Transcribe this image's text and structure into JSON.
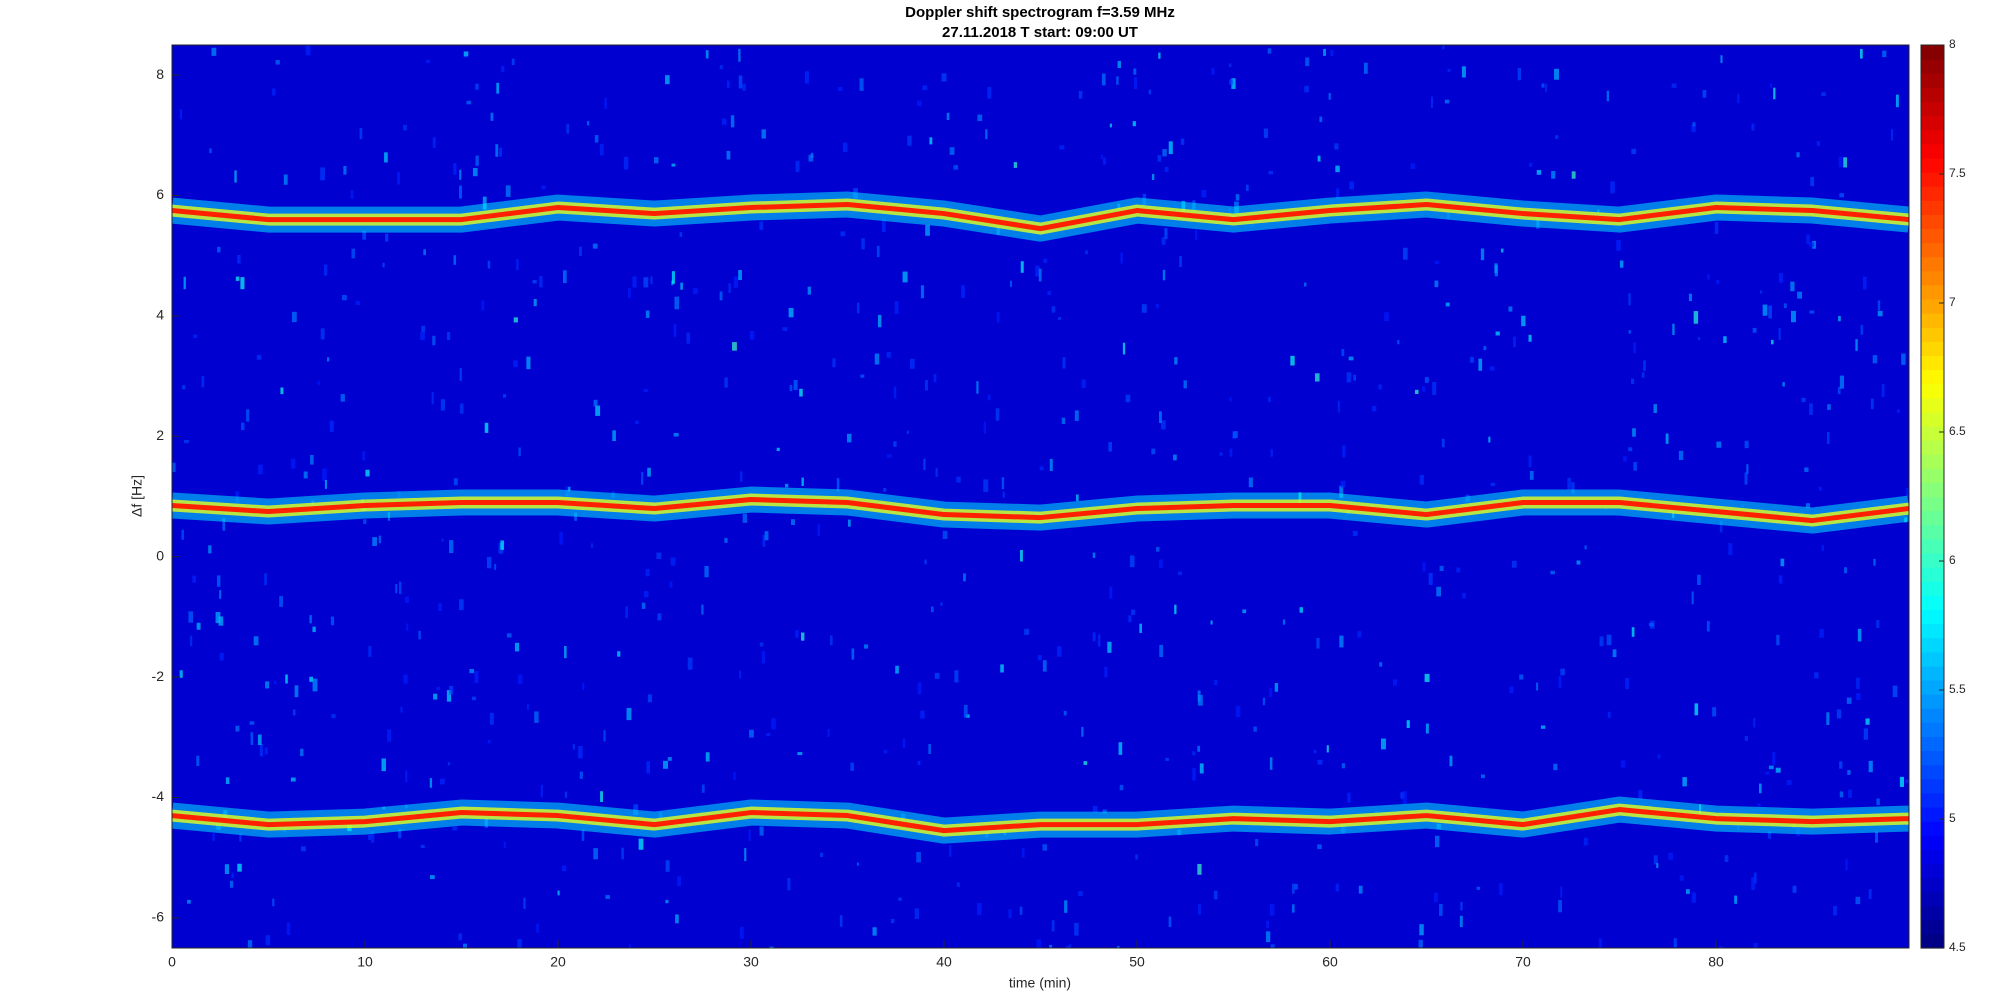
{
  "chart_data": {
    "type": "spectrogram",
    "title": "Doppler shift spectrogram f=3.59 MHz",
    "subtitle": "27.11.2018   T start: 09:00 UT",
    "x_label": "time (min)",
    "y_label": "Δf [Hz]",
    "x": [
      0,
      5,
      10,
      15,
      20,
      25,
      30,
      35,
      40,
      45,
      50,
      55,
      60,
      65,
      70,
      75,
      80,
      85,
      90
    ],
    "series": [
      {
        "color": "#ff2000",
        "values": [
          5.75,
          5.6,
          5.6,
          5.6,
          5.8,
          5.7,
          5.8,
          5.85,
          5.7,
          5.45,
          5.75,
          5.6,
          5.75,
          5.85,
          5.7,
          5.6,
          5.8,
          5.75,
          5.6
        ]
      },
      {
        "color": "#ff2000",
        "values": [
          0.85,
          0.75,
          0.85,
          0.9,
          0.9,
          0.8,
          0.95,
          0.9,
          0.7,
          0.65,
          0.8,
          0.85,
          0.85,
          0.7,
          0.9,
          0.9,
          0.75,
          0.6,
          0.8
        ]
      },
      {
        "color": "#ff2000",
        "values": [
          -4.3,
          -4.45,
          -4.4,
          -4.25,
          -4.3,
          -4.45,
          -4.25,
          -4.3,
          -4.55,
          -4.45,
          -4.45,
          -4.35,
          -4.4,
          -4.3,
          -4.45,
          -4.2,
          -4.35,
          -4.4,
          -4.35
        ]
      }
    ],
    "xlim": [
      0,
      90
    ],
    "xticks": [
      0,
      10,
      20,
      30,
      40,
      50,
      60,
      70,
      80
    ],
    "ylim": [
      -6.5,
      8.5
    ],
    "yticks": [
      -6,
      -4,
      -2,
      0,
      2,
      4,
      6,
      8
    ],
    "colormap": "jet",
    "clim": [
      4.5,
      8
    ],
    "cticks": [
      4.5,
      5,
      5.5,
      6,
      6.5,
      7,
      7.5,
      8
    ]
  }
}
